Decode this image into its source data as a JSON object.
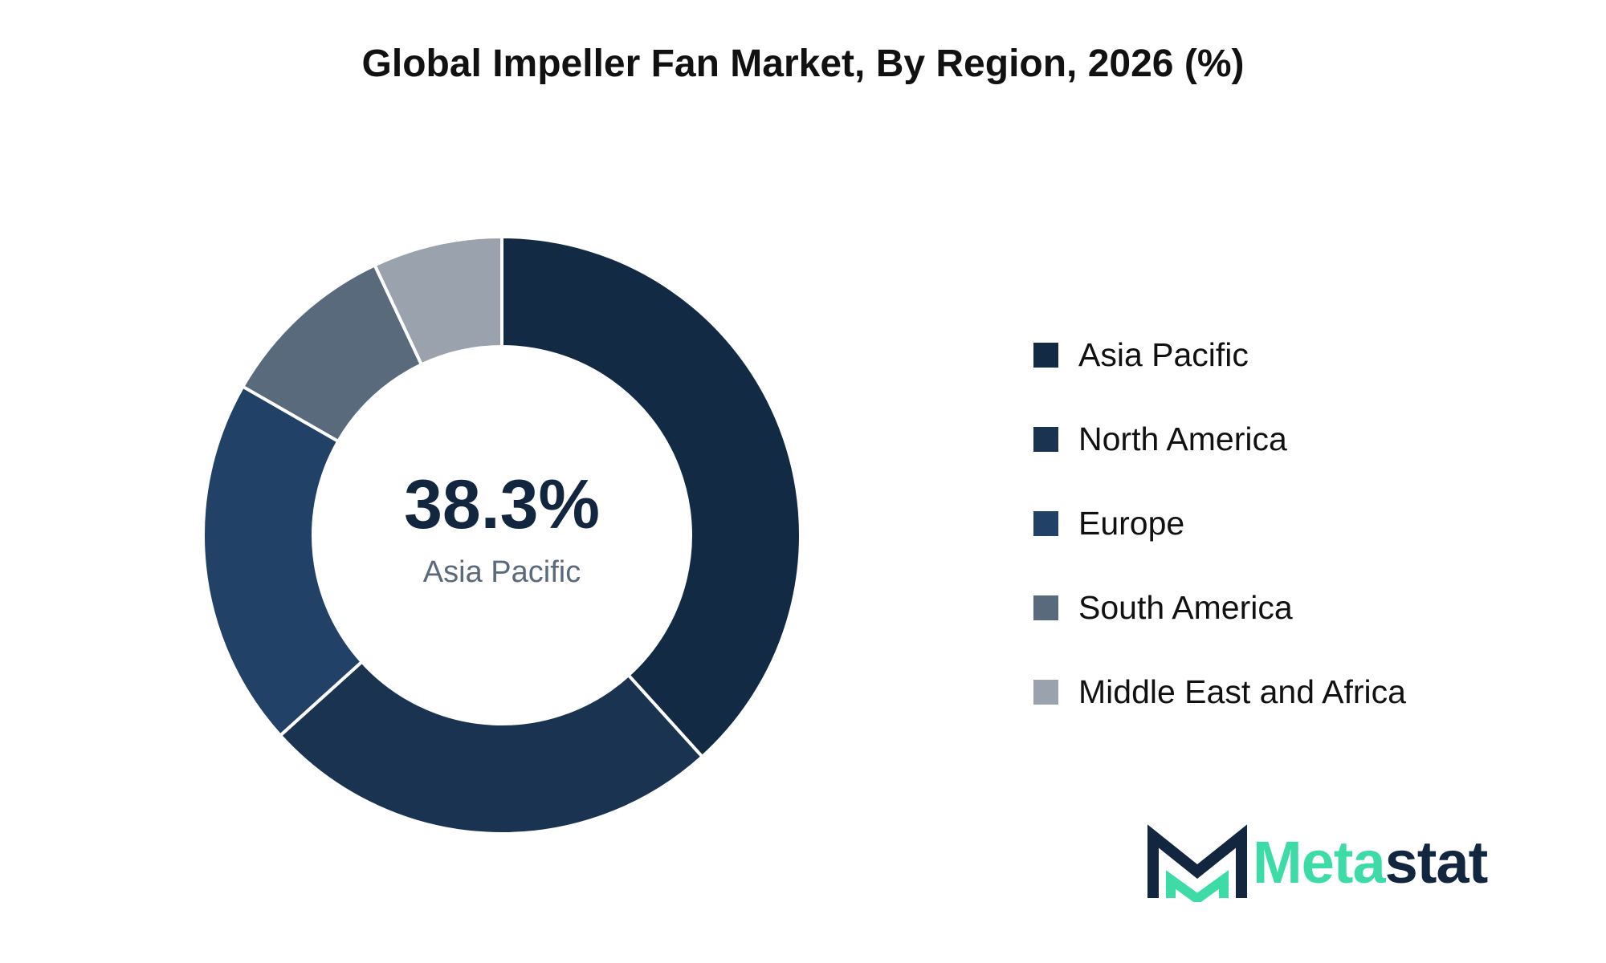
{
  "chart_data": {
    "type": "pie",
    "title": "Global Impeller Fan Market, By Region, 2026 (%)",
    "categories": [
      "Asia Pacific",
      "North America",
      "Europe",
      "South America",
      "Middle East and Africa"
    ],
    "values": [
      38.3,
      25.0,
      20.0,
      9.7,
      7.0
    ],
    "colors": [
      "#132a45",
      "#1a3350",
      "#214167",
      "#5a6a7d",
      "#9aa2ad"
    ],
    "center_value": "38.3%",
    "center_label": "Asia Pacific",
    "legend_position": "right"
  },
  "logo": {
    "part1": "Meta",
    "part2": "stat"
  }
}
